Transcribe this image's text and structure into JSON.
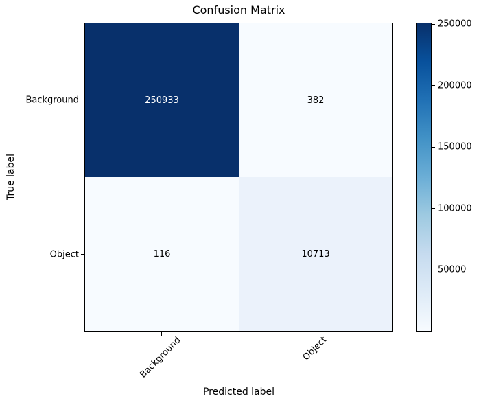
{
  "chart_data": {
    "type": "heatmap",
    "title": "Confusion Matrix",
    "xlabel": "Predicted label",
    "ylabel": "True label",
    "categories": [
      "Background",
      "Object"
    ],
    "matrix": [
      [
        250933,
        382
      ],
      [
        116,
        10713
      ]
    ],
    "vmin": 116,
    "vmax": 250933,
    "colormap": "Blues",
    "grid": false,
    "legend_position": "colorbar-right",
    "cell_colors": [
      [
        "#08306b",
        "#f7fbff"
      ],
      [
        "#f7fbff",
        "#ebf2fb"
      ]
    ],
    "cell_text_colors": [
      [
        "#ffffff",
        "#000000"
      ],
      [
        "#000000",
        "#000000"
      ]
    ],
    "colorbar": {
      "ticks": [
        250000,
        200000,
        150000,
        100000,
        50000
      ],
      "gradient_stops": [
        "#f7fbff",
        "#deebf7",
        "#c6dbef",
        "#9ecae1",
        "#6baed6",
        "#4292c6",
        "#2171b5",
        "#08519c",
        "#08306b"
      ]
    }
  }
}
